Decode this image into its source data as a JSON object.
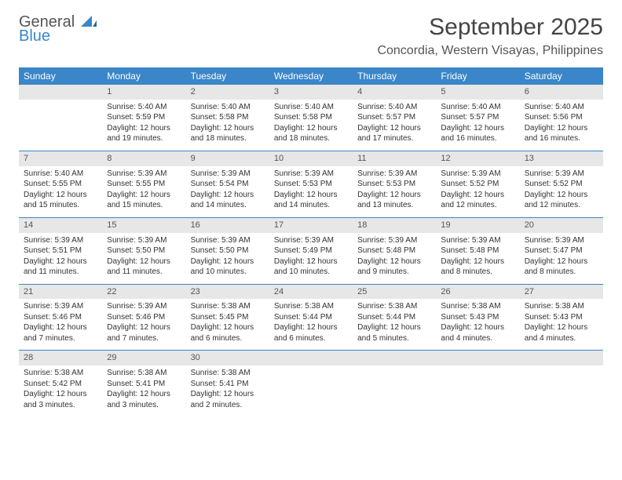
{
  "logo": {
    "word1": "General",
    "word2": "Blue",
    "word1_color": "#555555",
    "word2_color": "#3a86c8"
  },
  "title": "September 2025",
  "location": "Concordia, Western Visayas, Philippines",
  "theme": {
    "header_bg": "#3a86c8",
    "header_fg": "#ffffff",
    "daynum_bg": "#e7e7e7",
    "rule_color": "#3a86c8"
  },
  "columns": [
    "Sunday",
    "Monday",
    "Tuesday",
    "Wednesday",
    "Thursday",
    "Friday",
    "Saturday"
  ],
  "weeks": [
    [
      null,
      {
        "n": "1",
        "sr": "Sunrise: 5:40 AM",
        "ss": "Sunset: 5:59 PM",
        "d1": "Daylight: 12 hours",
        "d2": "and 19 minutes."
      },
      {
        "n": "2",
        "sr": "Sunrise: 5:40 AM",
        "ss": "Sunset: 5:58 PM",
        "d1": "Daylight: 12 hours",
        "d2": "and 18 minutes."
      },
      {
        "n": "3",
        "sr": "Sunrise: 5:40 AM",
        "ss": "Sunset: 5:58 PM",
        "d1": "Daylight: 12 hours",
        "d2": "and 18 minutes."
      },
      {
        "n": "4",
        "sr": "Sunrise: 5:40 AM",
        "ss": "Sunset: 5:57 PM",
        "d1": "Daylight: 12 hours",
        "d2": "and 17 minutes."
      },
      {
        "n": "5",
        "sr": "Sunrise: 5:40 AM",
        "ss": "Sunset: 5:57 PM",
        "d1": "Daylight: 12 hours",
        "d2": "and 16 minutes."
      },
      {
        "n": "6",
        "sr": "Sunrise: 5:40 AM",
        "ss": "Sunset: 5:56 PM",
        "d1": "Daylight: 12 hours",
        "d2": "and 16 minutes."
      }
    ],
    [
      {
        "n": "7",
        "sr": "Sunrise: 5:40 AM",
        "ss": "Sunset: 5:55 PM",
        "d1": "Daylight: 12 hours",
        "d2": "and 15 minutes."
      },
      {
        "n": "8",
        "sr": "Sunrise: 5:39 AM",
        "ss": "Sunset: 5:55 PM",
        "d1": "Daylight: 12 hours",
        "d2": "and 15 minutes."
      },
      {
        "n": "9",
        "sr": "Sunrise: 5:39 AM",
        "ss": "Sunset: 5:54 PM",
        "d1": "Daylight: 12 hours",
        "d2": "and 14 minutes."
      },
      {
        "n": "10",
        "sr": "Sunrise: 5:39 AM",
        "ss": "Sunset: 5:53 PM",
        "d1": "Daylight: 12 hours",
        "d2": "and 14 minutes."
      },
      {
        "n": "11",
        "sr": "Sunrise: 5:39 AM",
        "ss": "Sunset: 5:53 PM",
        "d1": "Daylight: 12 hours",
        "d2": "and 13 minutes."
      },
      {
        "n": "12",
        "sr": "Sunrise: 5:39 AM",
        "ss": "Sunset: 5:52 PM",
        "d1": "Daylight: 12 hours",
        "d2": "and 12 minutes."
      },
      {
        "n": "13",
        "sr": "Sunrise: 5:39 AM",
        "ss": "Sunset: 5:52 PM",
        "d1": "Daylight: 12 hours",
        "d2": "and 12 minutes."
      }
    ],
    [
      {
        "n": "14",
        "sr": "Sunrise: 5:39 AM",
        "ss": "Sunset: 5:51 PM",
        "d1": "Daylight: 12 hours",
        "d2": "and 11 minutes."
      },
      {
        "n": "15",
        "sr": "Sunrise: 5:39 AM",
        "ss": "Sunset: 5:50 PM",
        "d1": "Daylight: 12 hours",
        "d2": "and 11 minutes."
      },
      {
        "n": "16",
        "sr": "Sunrise: 5:39 AM",
        "ss": "Sunset: 5:50 PM",
        "d1": "Daylight: 12 hours",
        "d2": "and 10 minutes."
      },
      {
        "n": "17",
        "sr": "Sunrise: 5:39 AM",
        "ss": "Sunset: 5:49 PM",
        "d1": "Daylight: 12 hours",
        "d2": "and 10 minutes."
      },
      {
        "n": "18",
        "sr": "Sunrise: 5:39 AM",
        "ss": "Sunset: 5:48 PM",
        "d1": "Daylight: 12 hours",
        "d2": "and 9 minutes."
      },
      {
        "n": "19",
        "sr": "Sunrise: 5:39 AM",
        "ss": "Sunset: 5:48 PM",
        "d1": "Daylight: 12 hours",
        "d2": "and 8 minutes."
      },
      {
        "n": "20",
        "sr": "Sunrise: 5:39 AM",
        "ss": "Sunset: 5:47 PM",
        "d1": "Daylight: 12 hours",
        "d2": "and 8 minutes."
      }
    ],
    [
      {
        "n": "21",
        "sr": "Sunrise: 5:39 AM",
        "ss": "Sunset: 5:46 PM",
        "d1": "Daylight: 12 hours",
        "d2": "and 7 minutes."
      },
      {
        "n": "22",
        "sr": "Sunrise: 5:39 AM",
        "ss": "Sunset: 5:46 PM",
        "d1": "Daylight: 12 hours",
        "d2": "and 7 minutes."
      },
      {
        "n": "23",
        "sr": "Sunrise: 5:38 AM",
        "ss": "Sunset: 5:45 PM",
        "d1": "Daylight: 12 hours",
        "d2": "and 6 minutes."
      },
      {
        "n": "24",
        "sr": "Sunrise: 5:38 AM",
        "ss": "Sunset: 5:44 PM",
        "d1": "Daylight: 12 hours",
        "d2": "and 6 minutes."
      },
      {
        "n": "25",
        "sr": "Sunrise: 5:38 AM",
        "ss": "Sunset: 5:44 PM",
        "d1": "Daylight: 12 hours",
        "d2": "and 5 minutes."
      },
      {
        "n": "26",
        "sr": "Sunrise: 5:38 AM",
        "ss": "Sunset: 5:43 PM",
        "d1": "Daylight: 12 hours",
        "d2": "and 4 minutes."
      },
      {
        "n": "27",
        "sr": "Sunrise: 5:38 AM",
        "ss": "Sunset: 5:43 PM",
        "d1": "Daylight: 12 hours",
        "d2": "and 4 minutes."
      }
    ],
    [
      {
        "n": "28",
        "sr": "Sunrise: 5:38 AM",
        "ss": "Sunset: 5:42 PM",
        "d1": "Daylight: 12 hours",
        "d2": "and 3 minutes."
      },
      {
        "n": "29",
        "sr": "Sunrise: 5:38 AM",
        "ss": "Sunset: 5:41 PM",
        "d1": "Daylight: 12 hours",
        "d2": "and 3 minutes."
      },
      {
        "n": "30",
        "sr": "Sunrise: 5:38 AM",
        "ss": "Sunset: 5:41 PM",
        "d1": "Daylight: 12 hours",
        "d2": "and 2 minutes."
      },
      null,
      null,
      null,
      null
    ]
  ]
}
